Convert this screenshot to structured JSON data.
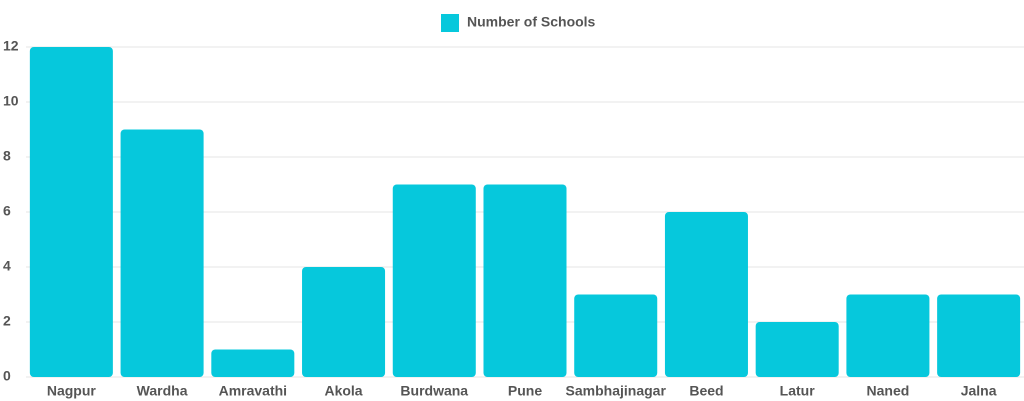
{
  "chart_data": {
    "type": "bar",
    "categories": [
      "Nagpur",
      "Wardha",
      "Amravathi",
      "Akola",
      "Burdwana",
      "Pune",
      "Sambhajinagar",
      "Beed",
      "Latur",
      "Naned",
      "Jalna"
    ],
    "series": [
      {
        "name": "Number of Schools",
        "color": "#06c8dc",
        "values": [
          12,
          9,
          1,
          4,
          7,
          7,
          3,
          6,
          2,
          3,
          3
        ]
      }
    ],
    "ylim": [
      0,
      12
    ],
    "yticks": [
      0,
      2,
      4,
      6,
      8,
      10,
      12
    ],
    "grid": true,
    "legend": "top"
  }
}
